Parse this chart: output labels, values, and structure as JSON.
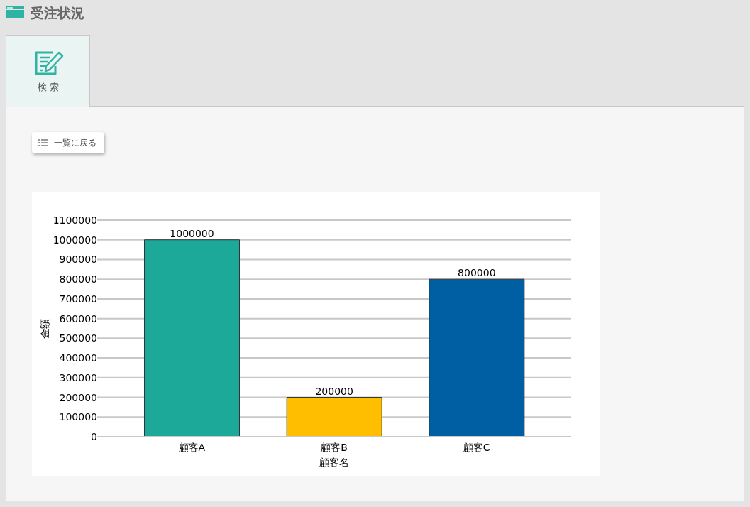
{
  "chart_data": {
    "type": "bar",
    "title": "受注状況",
    "categories": [
      "顧客A",
      "顧客B",
      "顧客C"
    ],
    "values": [
      1000000,
      200000,
      800000
    ],
    "colors": [
      "#1ca99a",
      "#ffbf00",
      "#005fa3"
    ],
    "xlabel": "顧客名",
    "ylabel": "金額",
    "ylim": [
      0,
      1100000
    ],
    "yticks": [
      0,
      100000,
      200000,
      300000,
      400000,
      500000,
      600000,
      700000,
      800000,
      900000,
      1000000,
      1100000
    ],
    "grid": "y",
    "data_labels": true,
    "annotations": [
      "検 索",
      "一覧に戻る"
    ]
  }
}
